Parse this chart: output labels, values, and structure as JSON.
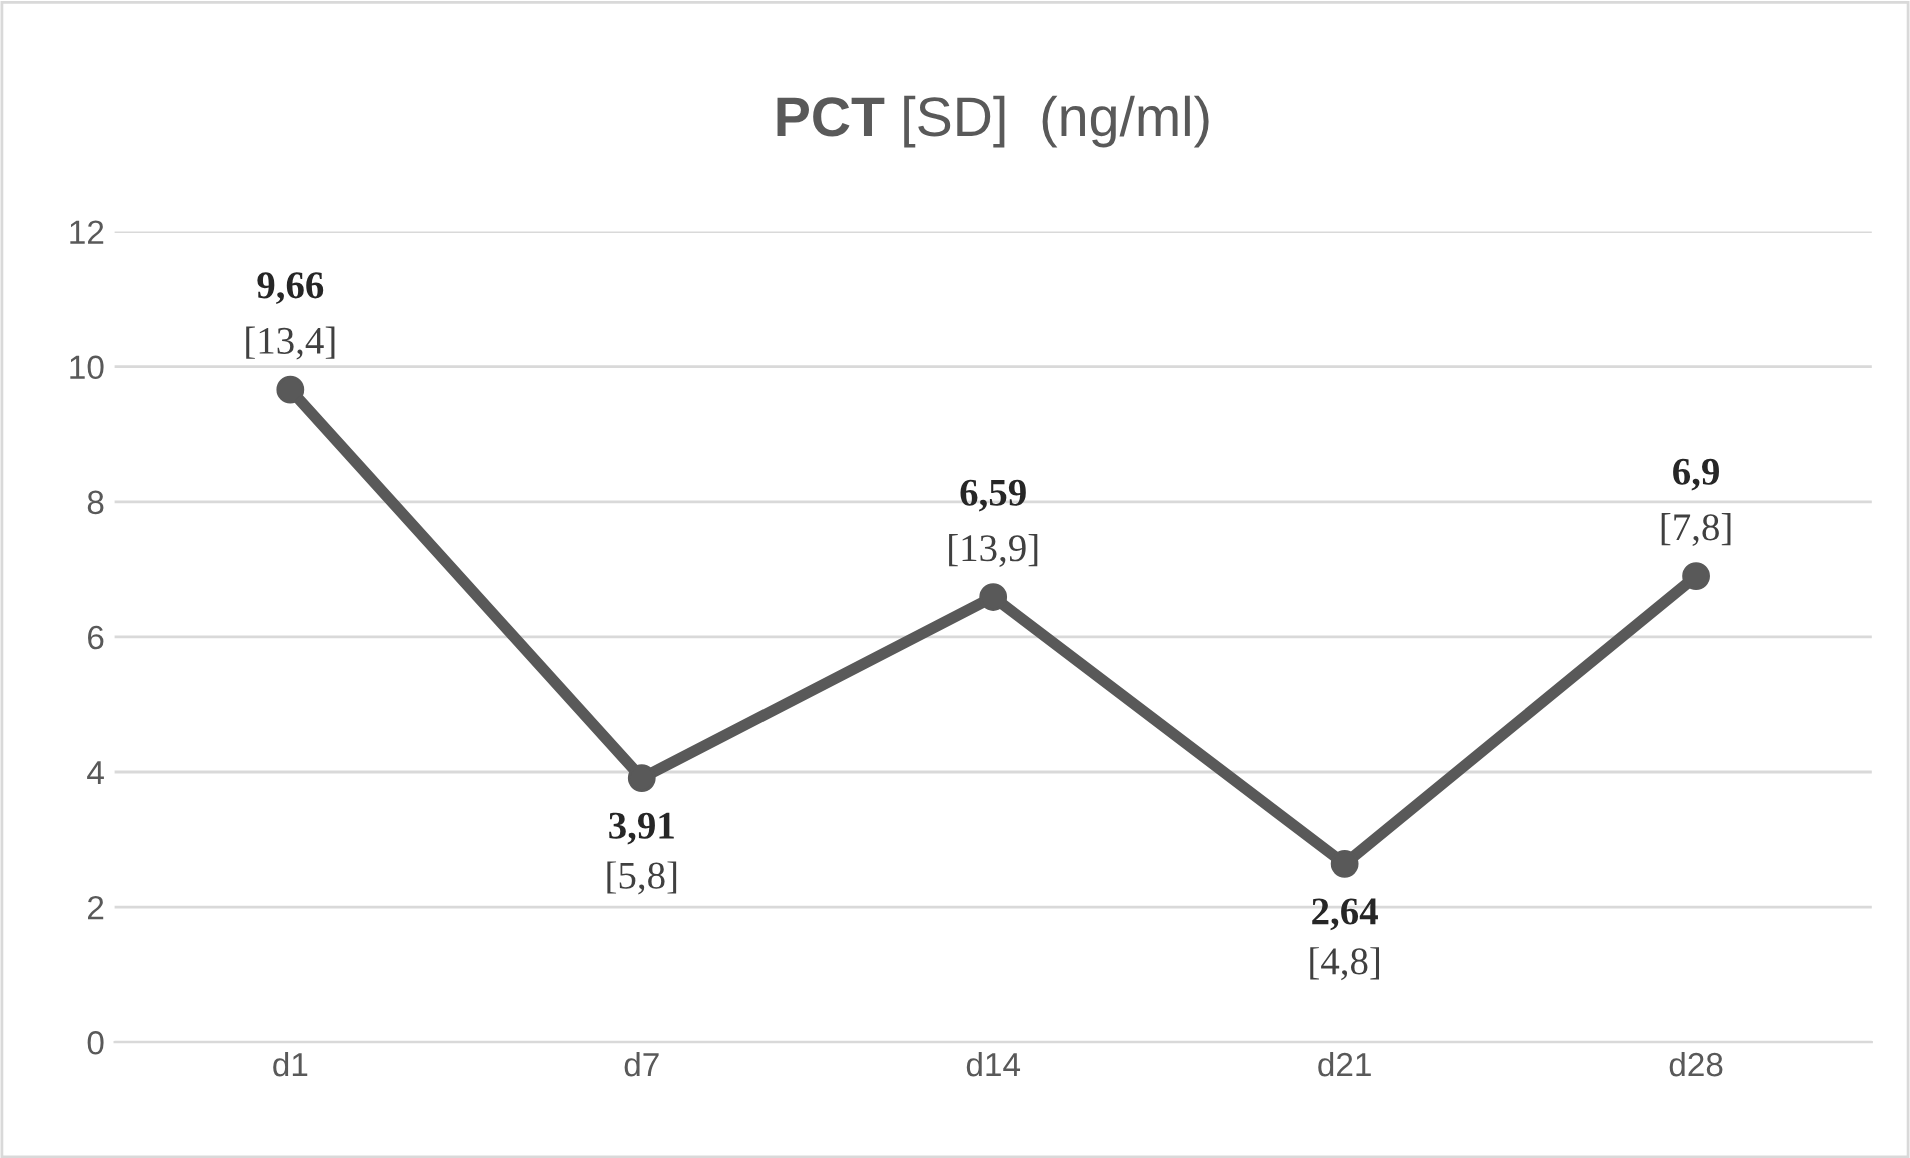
{
  "chart_data": {
    "type": "line",
    "title": "PCT [SD]  (ng/ml)",
    "categories": [
      "d1",
      "d7",
      "d14",
      "d21",
      "d28"
    ],
    "series": [
      {
        "color": "#595959",
        "values": [
          9.66,
          3.91,
          6.59,
          2.64,
          6.9
        ]
      }
    ],
    "value_labels": [
      "9,66",
      "3,91",
      "6,59",
      "2,64",
      "6,9"
    ],
    "annotations": [
      {
        "text": "[13,4]",
        "x": "d1",
        "y": 9.66
      },
      {
        "text": "[5,8]",
        "x": "d7",
        "y": 3.91
      },
      {
        "text": "[13,9]",
        "x": "d14",
        "y": 6.59
      },
      {
        "text": "[4,8]",
        "x": "d21",
        "y": 2.64
      },
      {
        "text": "[7,8]",
        "x": "d28",
        "y": 6.9
      }
    ],
    "ylim": [
      0,
      12
    ],
    "yticks": [
      0,
      2,
      4,
      6,
      8,
      10,
      12
    ],
    "grid": "y",
    "marker": "circle",
    "line_style": "solid",
    "legend": false
  }
}
